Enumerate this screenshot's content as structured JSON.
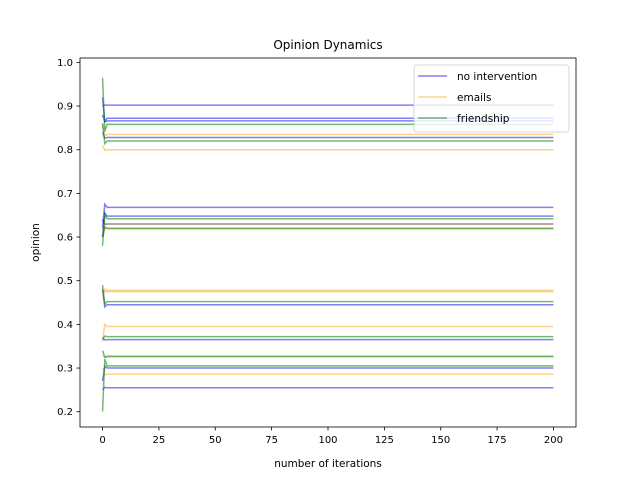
{
  "chart_data": {
    "type": "line",
    "title": "Opinion Dynamics",
    "xlabel": "number of iterations",
    "ylabel": "opinion",
    "xlim": [
      -10,
      210
    ],
    "ylim": [
      0.165,
      1.01
    ],
    "xticks": [
      0,
      25,
      50,
      75,
      100,
      125,
      150,
      175,
      200
    ],
    "yticks": [
      0.2,
      0.3,
      0.4,
      0.5,
      0.6,
      0.7,
      0.8,
      0.9,
      1.0
    ],
    "grid": false,
    "legend_position": "top-right",
    "iterations": 200,
    "series": [
      {
        "name": "no intervention",
        "color": "#0000ee",
        "opacity": 0.5,
        "lines": [
          {
            "start": 0.9,
            "final": 0.902
          },
          {
            "start": 0.92,
            "final": 0.872
          },
          {
            "start": 0.88,
            "final": 0.866
          },
          {
            "start": 0.84,
            "final": 0.828
          },
          {
            "start": 0.62,
            "final": 0.668
          },
          {
            "start": 0.6,
            "final": 0.648
          },
          {
            "start": 0.64,
            "final": 0.63
          },
          {
            "start": 0.48,
            "final": 0.445
          },
          {
            "start": 0.37,
            "final": 0.365
          },
          {
            "start": 0.27,
            "final": 0.3
          },
          {
            "start": 0.25,
            "final": 0.255
          }
        ]
      },
      {
        "name": "emails",
        "color": "#f5a000",
        "opacity": 0.45,
        "lines": [
          {
            "start": 0.86,
            "final": 0.835
          },
          {
            "start": 0.81,
            "final": 0.8
          },
          {
            "start": 0.6,
            "final": 0.618
          },
          {
            "start": 0.62,
            "final": 0.63
          },
          {
            "start": 0.46,
            "final": 0.478
          },
          {
            "start": 0.47,
            "final": 0.475
          },
          {
            "start": 0.36,
            "final": 0.395
          },
          {
            "start": 0.3,
            "final": 0.286
          },
          {
            "start": 0.33,
            "final": 0.325
          }
        ]
      },
      {
        "name": "friendship",
        "color": "#008000",
        "opacity": 0.55,
        "lines": [
          {
            "start": 0.965,
            "final": 0.858
          },
          {
            "start": 0.86,
            "final": 0.82
          },
          {
            "start": 0.58,
            "final": 0.642
          },
          {
            "start": 0.6,
            "final": 0.62
          },
          {
            "start": 0.49,
            "final": 0.452
          },
          {
            "start": 0.365,
            "final": 0.372
          },
          {
            "start": 0.34,
            "final": 0.327
          },
          {
            "start": 0.2,
            "final": 0.305
          }
        ]
      }
    ]
  }
}
